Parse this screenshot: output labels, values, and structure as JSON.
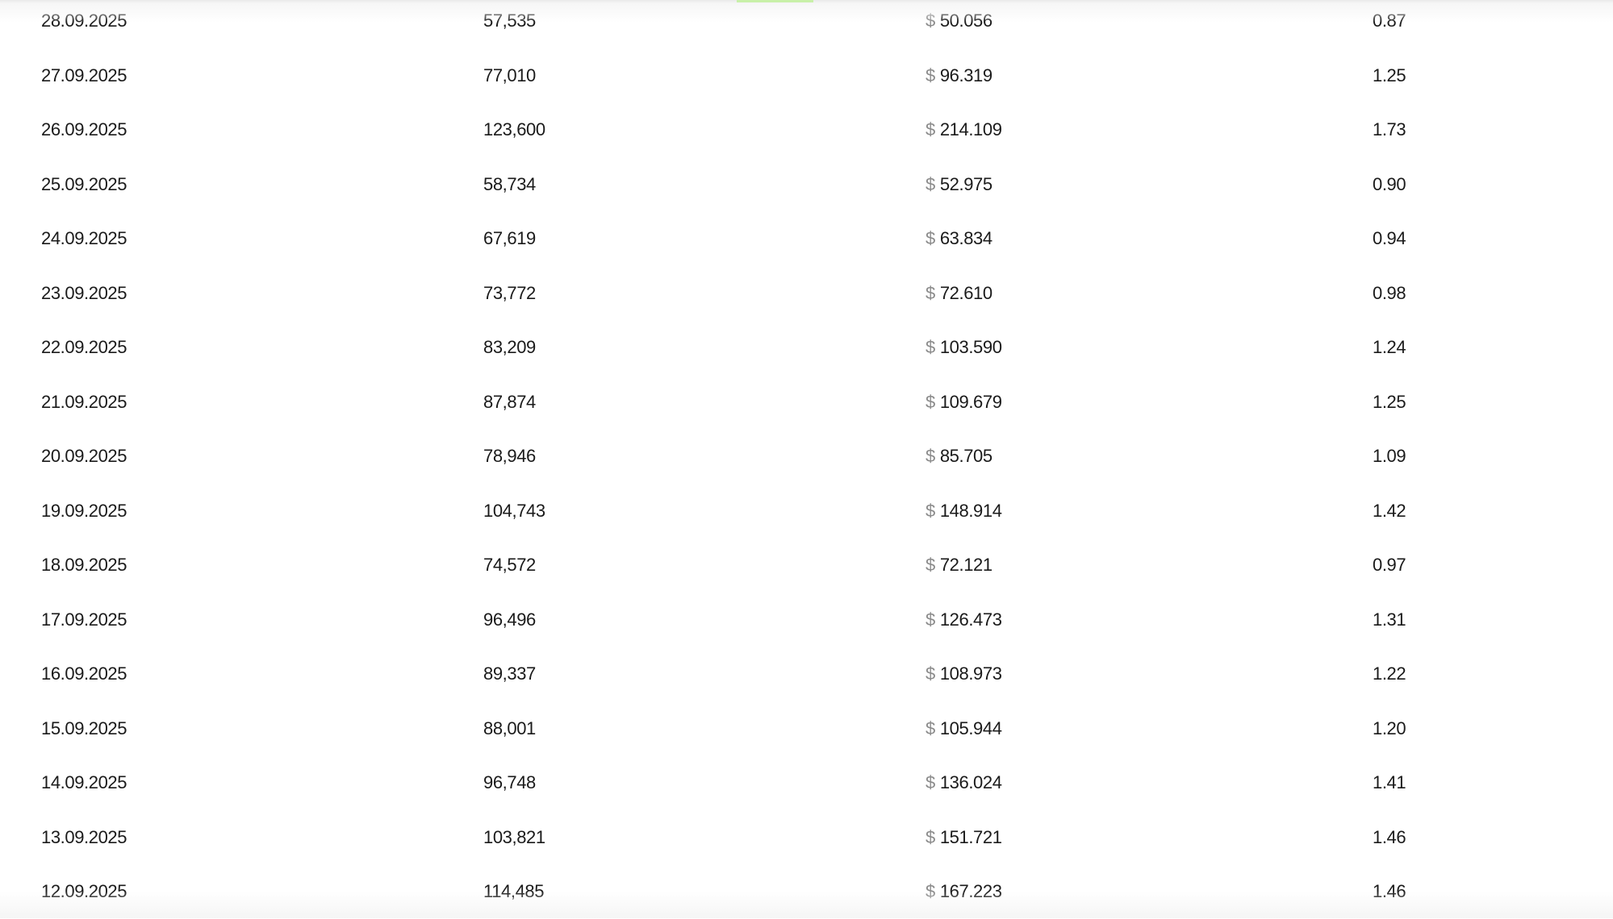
{
  "table": {
    "currency_symbol": "$",
    "rows": [
      {
        "date": "28.09.2025",
        "count": "57,535",
        "amount": "50.056",
        "ratio": "0.87"
      },
      {
        "date": "27.09.2025",
        "count": "77,010",
        "amount": "96.319",
        "ratio": "1.25"
      },
      {
        "date": "26.09.2025",
        "count": "123,600",
        "amount": "214.109",
        "ratio": "1.73"
      },
      {
        "date": "25.09.2025",
        "count": "58,734",
        "amount": "52.975",
        "ratio": "0.90"
      },
      {
        "date": "24.09.2025",
        "count": "67,619",
        "amount": "63.834",
        "ratio": "0.94"
      },
      {
        "date": "23.09.2025",
        "count": "73,772",
        "amount": "72.610",
        "ratio": "0.98"
      },
      {
        "date": "22.09.2025",
        "count": "83,209",
        "amount": "103.590",
        "ratio": "1.24"
      },
      {
        "date": "21.09.2025",
        "count": "87,874",
        "amount": "109.679",
        "ratio": "1.25"
      },
      {
        "date": "20.09.2025",
        "count": "78,946",
        "amount": "85.705",
        "ratio": "1.09"
      },
      {
        "date": "19.09.2025",
        "count": "104,743",
        "amount": "148.914",
        "ratio": "1.42"
      },
      {
        "date": "18.09.2025",
        "count": "74,572",
        "amount": "72.121",
        "ratio": "0.97"
      },
      {
        "date": "17.09.2025",
        "count": "96,496",
        "amount": "126.473",
        "ratio": "1.31"
      },
      {
        "date": "16.09.2025",
        "count": "89,337",
        "amount": "108.973",
        "ratio": "1.22"
      },
      {
        "date": "15.09.2025",
        "count": "88,001",
        "amount": "105.944",
        "ratio": "1.20"
      },
      {
        "date": "14.09.2025",
        "count": "96,748",
        "amount": "136.024",
        "ratio": "1.41"
      },
      {
        "date": "13.09.2025",
        "count": "103,821",
        "amount": "151.721",
        "ratio": "1.46"
      },
      {
        "date": "12.09.2025",
        "count": "114,485",
        "amount": "167.223",
        "ratio": "1.46"
      }
    ]
  }
}
